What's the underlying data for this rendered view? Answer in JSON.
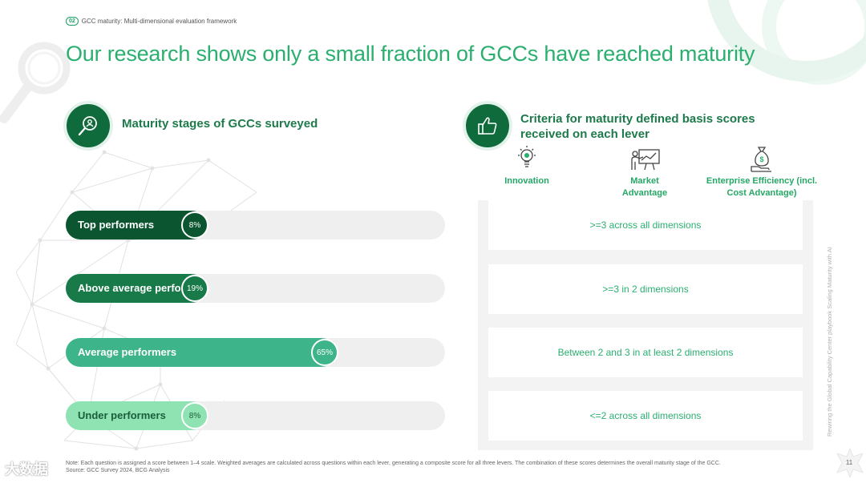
{
  "header": {
    "section_number": "02",
    "section_title": "GCC maturity: Multi-dimensional evaluation framework",
    "title": "Our research shows only a small fraction of GCCs have reached maturity"
  },
  "left_panel": {
    "heading": "Maturity stages of GCCs surveyed",
    "icon": "search-person-icon",
    "bars": [
      {
        "label": "Top performers",
        "value": 8,
        "display": "8%",
        "color": "#0b5631",
        "label_color": "#ffffff"
      },
      {
        "label": "Above average performers",
        "value": 19,
        "display": "19%",
        "color": "#187a48",
        "label_color": "#ffffff"
      },
      {
        "label": "Average performers",
        "value": 65,
        "display": "65%",
        "color": "#3db489",
        "label_color": "#ffffff"
      },
      {
        "label": "Under performers",
        "value": 8,
        "display": "8%",
        "color": "#8fe3b3",
        "label_color": "#1b5e3a"
      }
    ]
  },
  "right_panel": {
    "heading": "Criteria for maturity defined basis scores received on each lever",
    "icon": "thumbs-up-icon",
    "levers": [
      {
        "label": "Innovation",
        "icon": "lightbulb-icon"
      },
      {
        "label": "Market Advantage",
        "icon": "presentation-chart-icon"
      },
      {
        "label": "Enterprise Efficiency (incl. Cost Advantage)",
        "icon": "money-bag-icon"
      }
    ],
    "criteria": [
      ">=3 across all dimensions",
      ">=3 in 2 dimensions",
      "Between 2 and 3 in at least 2 dimensions",
      "<=2 across all dimensions"
    ]
  },
  "footer": {
    "note": "Note: Each question is assigned a score between 1–4 scale. Weighted averages are calculated across questions within each lever, generating a composite score for all three levers. The combination of these scores determines the overall maturity stage of the GCC.",
    "source": "Source: GCC Survey 2024, BCG Analysis",
    "side_text": "Rewiring the Global Capability Center playbook Scaling Maturity with AI",
    "page_number": "11",
    "watermark": "大数据"
  },
  "colors": {
    "accent": "#2aaf6f",
    "dark_green": "#0f6b3c",
    "track": "#efefef"
  }
}
